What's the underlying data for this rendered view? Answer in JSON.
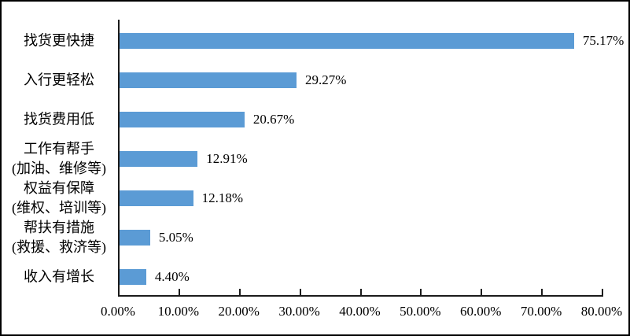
{
  "chart_data": {
    "type": "bar",
    "orientation": "horizontal",
    "title": "",
    "xlabel": "",
    "ylabel": "",
    "xlim": [
      0,
      80
    ],
    "grid": false,
    "legend": "none",
    "bar_color": "#5b9bd5",
    "axis_color": "#1a1a1a",
    "x_tick_labels": [
      "0.00%",
      "10.00%",
      "20.00%",
      "30.00%",
      "40.00%",
      "50.00%",
      "60.00%",
      "70.00%",
      "80.00%"
    ],
    "categories": [
      "找货更快捷",
      "入行更轻松",
      "找货费用低",
      "工作有帮手(加油、维修等)",
      "权益有保障(维权、培训等)",
      "帮扶有措施(救援、救济等)",
      "收入有增长"
    ],
    "values": [
      75.17,
      29.27,
      20.67,
      12.91,
      12.18,
      5.05,
      4.4
    ],
    "bars": [
      {
        "category_lines": [
          "找货更快捷"
        ],
        "value": 75.17,
        "value_label": "75.17%"
      },
      {
        "category_lines": [
          "入行更轻松"
        ],
        "value": 29.27,
        "value_label": "29.27%"
      },
      {
        "category_lines": [
          "找货费用低"
        ],
        "value": 20.67,
        "value_label": "20.67%"
      },
      {
        "category_lines": [
          "工作有帮手",
          "(加油、维修等)"
        ],
        "value": 12.91,
        "value_label": "12.91%"
      },
      {
        "category_lines": [
          "权益有保障",
          "(维权、培训等)"
        ],
        "value": 12.18,
        "value_label": "12.18%"
      },
      {
        "category_lines": [
          "帮扶有措施",
          "(救援、救济等)"
        ],
        "value": 5.05,
        "value_label": "5.05%"
      },
      {
        "category_lines": [
          "收入有增长"
        ],
        "value": 4.4,
        "value_label": "4.40%"
      }
    ]
  }
}
